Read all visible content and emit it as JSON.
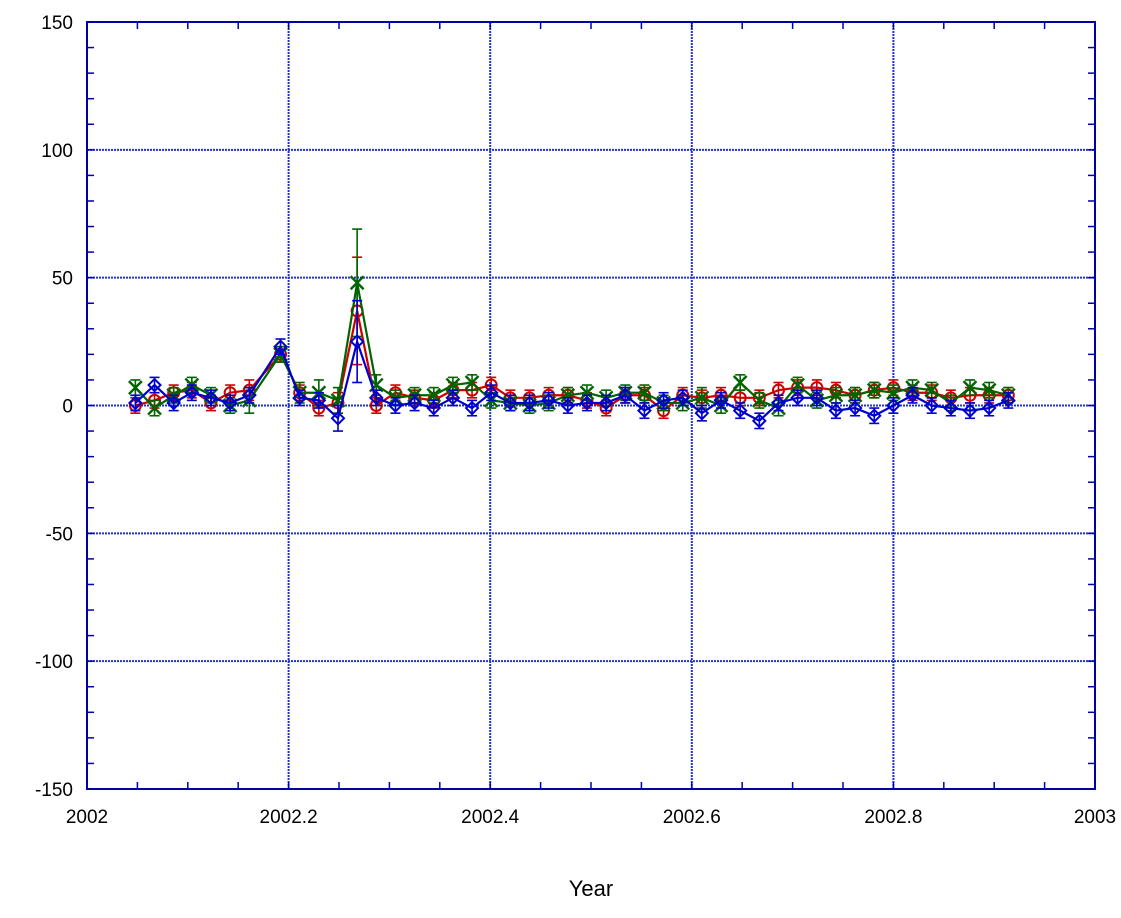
{
  "chart_data": {
    "type": "line",
    "xlabel": "Year",
    "ylabel": "",
    "xlim": [
      2002,
      2003
    ],
    "ylim": [
      -150,
      150
    ],
    "x_ticks": [
      "2002",
      "2002.2",
      "2002.4",
      "2002.6",
      "2002.8",
      "2003"
    ],
    "y_ticks": [
      "150",
      "100",
      "50",
      "0",
      "-50",
      "-100",
      "-150"
    ],
    "grid": true,
    "error_bars": true,
    "series": [
      {
        "color": "#cc0000",
        "marker": "circle",
        "points": [
          [
            2002.048,
            0,
            3
          ],
          [
            2002.067,
            2,
            3
          ],
          [
            2002.086,
            5,
            3
          ],
          [
            2002.104,
            6,
            3
          ],
          [
            2002.123,
            1,
            3
          ],
          [
            2002.142,
            5,
            3
          ],
          [
            2002.161,
            6,
            4
          ],
          [
            2002.192,
            20,
            3
          ],
          [
            2002.211,
            5,
            3
          ],
          [
            2002.23,
            -1,
            3
          ],
          [
            2002.249,
            1,
            4
          ],
          [
            2002.268,
            37,
            21
          ],
          [
            2002.287,
            0,
            3
          ],
          [
            2002.306,
            5,
            3
          ],
          [
            2002.325,
            3,
            3
          ],
          [
            2002.344,
            2,
            3
          ],
          [
            2002.363,
            6,
            3
          ],
          [
            2002.382,
            6,
            3
          ],
          [
            2002.401,
            8,
            3
          ],
          [
            2002.42,
            3,
            3
          ],
          [
            2002.439,
            3,
            3
          ],
          [
            2002.458,
            4,
            3
          ],
          [
            2002.477,
            4,
            3
          ],
          [
            2002.496,
            2,
            3
          ],
          [
            2002.515,
            -1,
            3
          ],
          [
            2002.534,
            4,
            3
          ],
          [
            2002.553,
            4,
            3
          ],
          [
            2002.572,
            -2,
            3
          ],
          [
            2002.591,
            4,
            3
          ],
          [
            2002.61,
            3,
            3
          ],
          [
            2002.629,
            4,
            3
          ],
          [
            2002.648,
            3,
            3
          ],
          [
            2002.667,
            3,
            3
          ],
          [
            2002.686,
            6,
            3
          ],
          [
            2002.705,
            7,
            3
          ],
          [
            2002.724,
            7,
            3
          ],
          [
            2002.743,
            6,
            3
          ],
          [
            2002.762,
            4,
            3
          ],
          [
            2002.781,
            6,
            3
          ],
          [
            2002.8,
            7,
            3
          ],
          [
            2002.819,
            5,
            3
          ],
          [
            2002.838,
            5,
            3
          ],
          [
            2002.857,
            3,
            3
          ],
          [
            2002.876,
            4,
            3
          ],
          [
            2002.895,
            4,
            3
          ],
          [
            2002.914,
            4,
            3
          ]
        ]
      },
      {
        "color": "#006400",
        "marker": "x",
        "points": [
          [
            2002.048,
            7,
            3
          ],
          [
            2002.067,
            -1,
            3
          ],
          [
            2002.086,
            4,
            3
          ],
          [
            2002.104,
            8,
            3
          ],
          [
            2002.123,
            4,
            3
          ],
          [
            2002.142,
            0,
            3
          ],
          [
            2002.161,
            2,
            5
          ],
          [
            2002.192,
            20,
            3
          ],
          [
            2002.211,
            5,
            4
          ],
          [
            2002.23,
            5,
            5
          ],
          [
            2002.249,
            2,
            5
          ],
          [
            2002.268,
            48,
            21
          ],
          [
            2002.287,
            8,
            4
          ],
          [
            2002.306,
            3,
            3
          ],
          [
            2002.325,
            4,
            3
          ],
          [
            2002.344,
            4,
            3
          ],
          [
            2002.363,
            8,
            3
          ],
          [
            2002.382,
            9,
            3
          ],
          [
            2002.401,
            2,
            3
          ],
          [
            2002.42,
            1,
            3
          ],
          [
            2002.439,
            0,
            3
          ],
          [
            2002.458,
            1,
            3
          ],
          [
            2002.477,
            4,
            3
          ],
          [
            2002.496,
            5,
            3
          ],
          [
            2002.515,
            3,
            3
          ],
          [
            2002.534,
            5,
            3
          ],
          [
            2002.553,
            5,
            3
          ],
          [
            2002.572,
            1,
            3
          ],
          [
            2002.591,
            1,
            3
          ],
          [
            2002.61,
            3,
            4
          ],
          [
            2002.629,
            0,
            3
          ],
          [
            2002.648,
            9,
            3
          ],
          [
            2002.667,
            2,
            3
          ],
          [
            2002.686,
            -1,
            3
          ],
          [
            2002.705,
            8,
            3
          ],
          [
            2002.724,
            2,
            3
          ],
          [
            2002.743,
            4,
            3
          ],
          [
            2002.762,
            4,
            3
          ],
          [
            2002.781,
            6,
            3
          ],
          [
            2002.8,
            5,
            3
          ],
          [
            2002.819,
            7,
            3
          ],
          [
            2002.838,
            6,
            3
          ],
          [
            2002.857,
            1,
            3
          ],
          [
            2002.876,
            7,
            3
          ],
          [
            2002.895,
            6,
            3
          ],
          [
            2002.914,
            4,
            3
          ]
        ]
      },
      {
        "color": "#0000cc",
        "marker": "diamond",
        "points": [
          [
            2002.048,
            1,
            3
          ],
          [
            2002.067,
            8,
            3
          ],
          [
            2002.086,
            1,
            3
          ],
          [
            2002.104,
            5,
            3
          ],
          [
            2002.123,
            3,
            3
          ],
          [
            2002.142,
            1,
            3
          ],
          [
            2002.161,
            4,
            3
          ],
          [
            2002.192,
            23,
            3
          ],
          [
            2002.211,
            3,
            3
          ],
          [
            2002.23,
            2,
            3
          ],
          [
            2002.249,
            -5,
            5
          ],
          [
            2002.268,
            25,
            16
          ],
          [
            2002.287,
            3,
            3
          ],
          [
            2002.306,
            0,
            3
          ],
          [
            2002.325,
            1,
            3
          ],
          [
            2002.344,
            -1,
            3
          ],
          [
            2002.363,
            3,
            3
          ],
          [
            2002.382,
            -1,
            3
          ],
          [
            2002.401,
            5,
            3
          ],
          [
            2002.42,
            1,
            3
          ],
          [
            2002.439,
            1,
            3
          ],
          [
            2002.458,
            2,
            3
          ],
          [
            2002.477,
            0,
            3
          ],
          [
            2002.496,
            1,
            3
          ],
          [
            2002.515,
            1,
            3
          ],
          [
            2002.534,
            4,
            3
          ],
          [
            2002.553,
            -2,
            3
          ],
          [
            2002.572,
            2,
            3
          ],
          [
            2002.591,
            3,
            3
          ],
          [
            2002.61,
            -3,
            3
          ],
          [
            2002.629,
            2,
            3
          ],
          [
            2002.648,
            -2,
            3
          ],
          [
            2002.667,
            -6,
            3
          ],
          [
            2002.686,
            1,
            3
          ],
          [
            2002.705,
            3,
            3
          ],
          [
            2002.724,
            3,
            3
          ],
          [
            2002.743,
            -2,
            3
          ],
          [
            2002.762,
            -1,
            3
          ],
          [
            2002.781,
            -4,
            3
          ],
          [
            2002.8,
            0,
            3
          ],
          [
            2002.819,
            4,
            3
          ],
          [
            2002.838,
            0,
            3
          ],
          [
            2002.857,
            -1,
            3
          ],
          [
            2002.876,
            -2,
            3
          ],
          [
            2002.895,
            -1,
            3
          ],
          [
            2002.914,
            2,
            3
          ]
        ]
      }
    ]
  }
}
